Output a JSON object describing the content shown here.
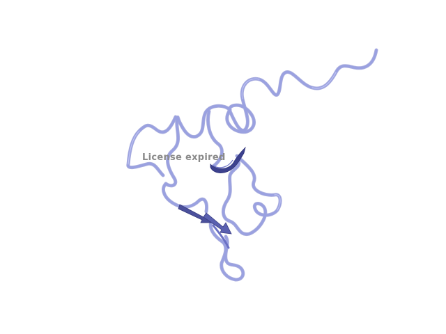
{
  "viewer": {
    "watermark_text": "License expired",
    "background_color": "#ffffff",
    "colors": {
      "coil": "#9aa1e0",
      "coil_shade": "#5c62b8",
      "sheet": "#4b509c",
      "helix": "#3c418e"
    },
    "structure": {
      "representation": "cartoon",
      "elements": [
        "coil",
        "helix",
        "sheet-arrow"
      ]
    }
  }
}
